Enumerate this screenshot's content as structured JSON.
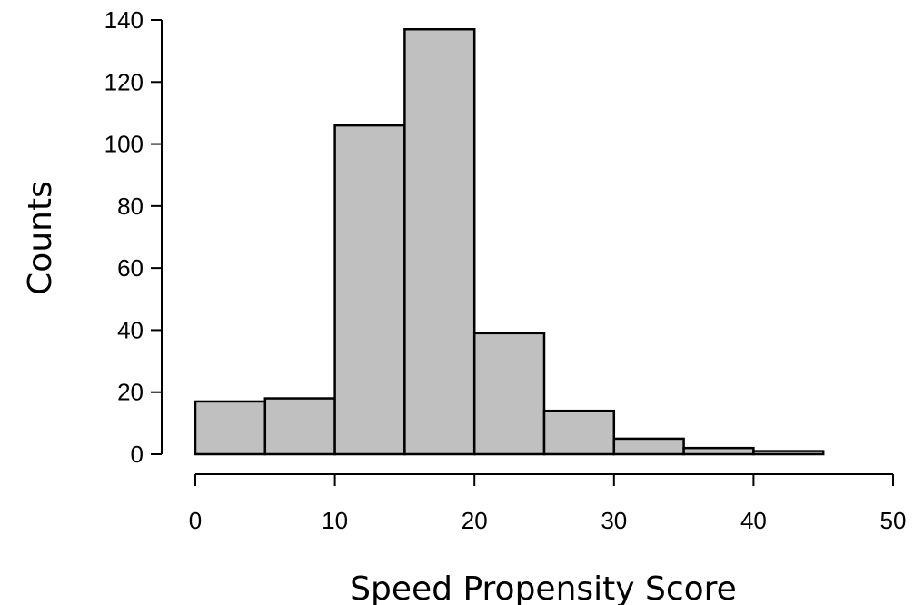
{
  "chart_data": {
    "type": "histogram",
    "title": "",
    "xlabel": "Speed Propensity Score",
    "ylabel": "Counts",
    "xlim": [
      0,
      50
    ],
    "ylim": [
      0,
      140
    ],
    "x_ticks": [
      0,
      10,
      20,
      30,
      40,
      50
    ],
    "y_ticks": [
      0,
      20,
      40,
      60,
      80,
      100,
      120,
      140
    ],
    "bins": [
      {
        "start": 0,
        "end": 5,
        "count": 17
      },
      {
        "start": 5,
        "end": 10,
        "count": 18
      },
      {
        "start": 10,
        "end": 15,
        "count": 106
      },
      {
        "start": 15,
        "end": 20,
        "count": 137
      },
      {
        "start": 20,
        "end": 25,
        "count": 39
      },
      {
        "start": 25,
        "end": 30,
        "count": 14
      },
      {
        "start": 30,
        "end": 35,
        "count": 5
      },
      {
        "start": 35,
        "end": 40,
        "count": 2
      },
      {
        "start": 40,
        "end": 45,
        "count": 1
      }
    ],
    "bar_color": "#c0c0c0",
    "edge_color": "#000000",
    "grid": false,
    "legend": "none"
  }
}
